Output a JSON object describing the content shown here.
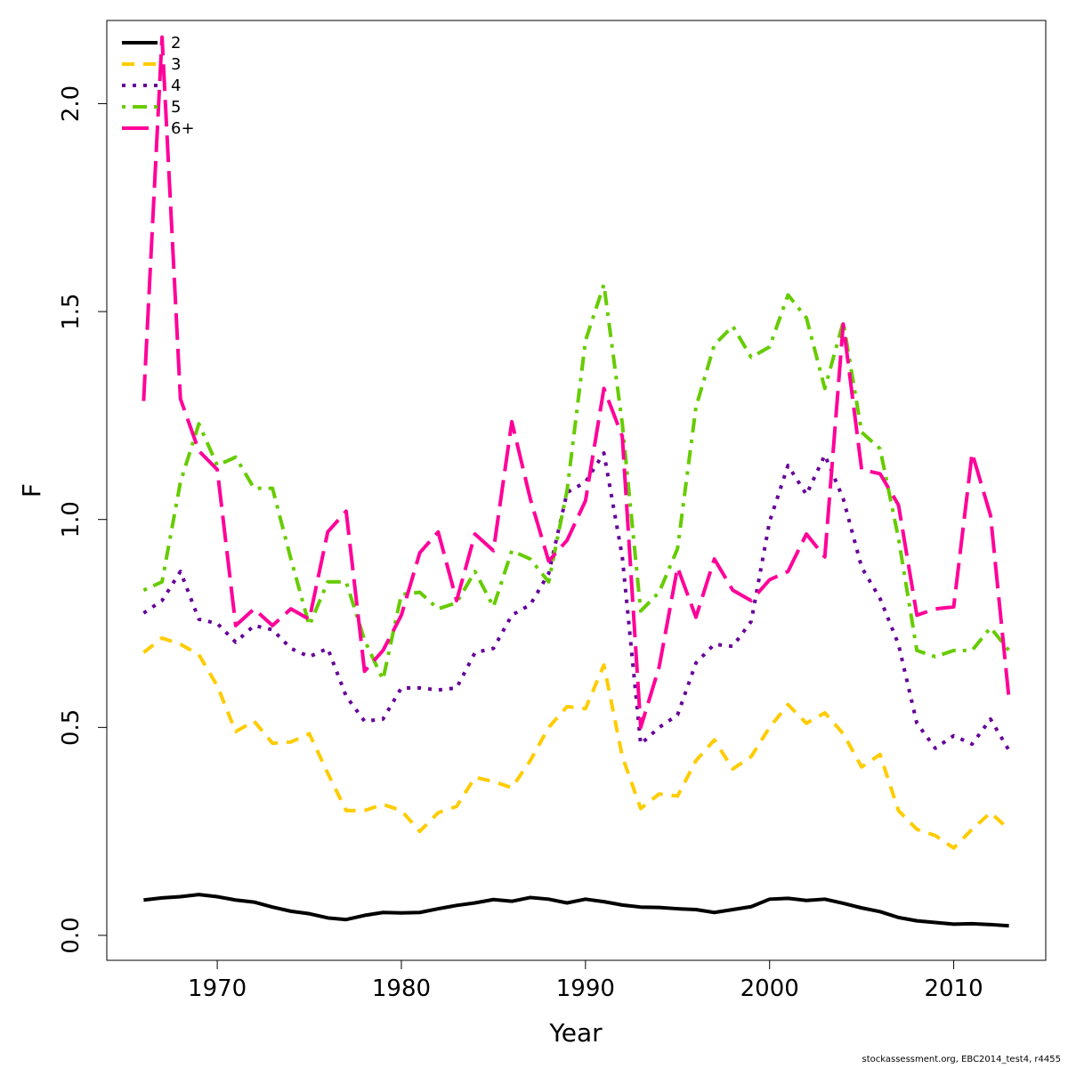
{
  "chart_data": {
    "type": "line",
    "title": "",
    "xlabel": "Year",
    "ylabel": "F",
    "xlim": [
      1964,
      2015
    ],
    "ylim": [
      -0.06,
      2.2
    ],
    "x_ticks": [
      1970,
      1980,
      1990,
      2000,
      2010
    ],
    "y_ticks": [
      "0.0",
      "0.5",
      "1.0",
      "1.5",
      "2.0"
    ],
    "grid": false,
    "legend_position": "top-left",
    "x": [
      1966,
      1967,
      1968,
      1969,
      1970,
      1971,
      1972,
      1973,
      1974,
      1975,
      1976,
      1977,
      1978,
      1979,
      1980,
      1981,
      1982,
      1983,
      1984,
      1985,
      1986,
      1987,
      1988,
      1989,
      1990,
      1991,
      1992,
      1993,
      1994,
      1995,
      1996,
      1997,
      1998,
      1999,
      2000,
      2001,
      2002,
      2003,
      2004,
      2005,
      2006,
      2007,
      2008,
      2009,
      2010,
      2011,
      2012,
      2013
    ],
    "series": [
      {
        "name": "2",
        "color": "#000000",
        "dash": "solid",
        "values": [
          0.085,
          0.09,
          0.093,
          0.098,
          0.093,
          0.085,
          0.08,
          0.068,
          0.058,
          0.052,
          0.042,
          0.038,
          0.048,
          0.055,
          0.054,
          0.055,
          0.064,
          0.072,
          0.078,
          0.086,
          0.082,
          0.091,
          0.087,
          0.078,
          0.087,
          0.081,
          0.073,
          0.068,
          0.067,
          0.064,
          0.062,
          0.055,
          0.062,
          0.069,
          0.087,
          0.089,
          0.084,
          0.087,
          0.077,
          0.066,
          0.057,
          0.043,
          0.035,
          0.031,
          0.027,
          0.028,
          0.026,
          0.023
        ]
      },
      {
        "name": "3",
        "color": "#FFCC00",
        "dash": "dashed",
        "values": [
          0.68,
          0.715,
          0.7,
          0.675,
          0.6,
          0.49,
          0.515,
          0.462,
          0.465,
          0.485,
          0.39,
          0.3,
          0.3,
          0.315,
          0.3,
          0.25,
          0.295,
          0.31,
          0.38,
          0.37,
          0.355,
          0.42,
          0.5,
          0.55,
          0.545,
          0.65,
          0.43,
          0.305,
          0.34,
          0.335,
          0.42,
          0.47,
          0.4,
          0.43,
          0.5,
          0.555,
          0.51,
          0.535,
          0.485,
          0.405,
          0.435,
          0.3,
          0.255,
          0.24,
          0.21,
          0.255,
          0.295,
          0.255
        ]
      },
      {
        "name": "4",
        "color": "#660099",
        "dash": "dotted",
        "values": [
          0.775,
          0.805,
          0.875,
          0.76,
          0.75,
          0.705,
          0.745,
          0.735,
          0.69,
          0.67,
          0.69,
          0.575,
          0.515,
          0.52,
          0.595,
          0.595,
          0.59,
          0.595,
          0.68,
          0.69,
          0.77,
          0.795,
          0.87,
          1.065,
          1.09,
          1.16,
          0.91,
          0.46,
          0.5,
          0.53,
          0.655,
          0.7,
          0.695,
          0.755,
          0.995,
          1.13,
          1.06,
          1.155,
          1.05,
          0.885,
          0.81,
          0.7,
          0.51,
          0.45,
          0.48,
          0.46,
          0.52,
          0.445
        ]
      },
      {
        "name": "5",
        "color": "#66CC00",
        "dash": "dotdash",
        "values": [
          0.83,
          0.85,
          1.09,
          1.23,
          1.13,
          1.15,
          1.075,
          1.075,
          0.905,
          0.745,
          0.85,
          0.85,
          0.71,
          0.615,
          0.82,
          0.825,
          0.785,
          0.8,
          0.875,
          0.79,
          0.925,
          0.905,
          0.85,
          1.07,
          1.43,
          1.565,
          1.23,
          0.78,
          0.825,
          0.93,
          1.27,
          1.42,
          1.465,
          1.39,
          1.415,
          1.54,
          1.485,
          1.315,
          1.475,
          1.21,
          1.17,
          0.955,
          0.685,
          0.67,
          0.685,
          0.685,
          0.74,
          0.685
        ]
      },
      {
        "name": "6+",
        "color": "#FF0099",
        "dash": "longdash",
        "values": [
          1.285,
          2.16,
          1.29,
          1.165,
          1.12,
          0.745,
          0.785,
          0.745,
          0.785,
          0.76,
          0.97,
          1.02,
          0.635,
          0.685,
          0.77,
          0.92,
          0.97,
          0.805,
          0.965,
          0.925,
          1.235,
          1.05,
          0.9,
          0.95,
          1.045,
          1.315,
          1.2,
          0.5,
          0.645,
          0.885,
          0.765,
          0.905,
          0.83,
          0.805,
          0.855,
          0.875,
          0.965,
          0.91,
          1.47,
          1.12,
          1.11,
          1.035,
          0.77,
          0.785,
          0.79,
          1.16,
          1.01,
          0.57
        ]
      }
    ]
  },
  "credit": "stockassessment.org, EBC2014_test4, r4455"
}
